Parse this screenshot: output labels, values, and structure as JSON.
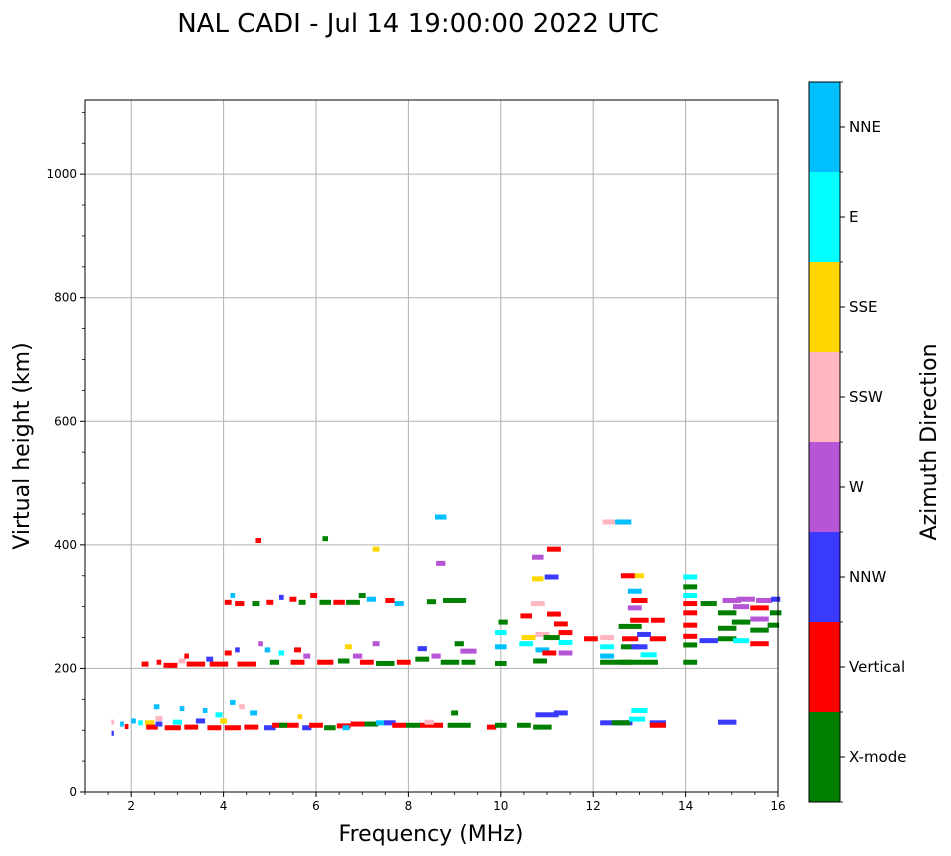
{
  "chart_data": {
    "type": "scatter",
    "title": "NAL CADI - Jul 14 19:00:00 2022 UTC",
    "xlabel": "Frequency (MHz)",
    "ylabel": "Virtual height (km)",
    "xlim": [
      1,
      16
    ],
    "ylim": [
      0,
      1120
    ],
    "xticks": [
      2,
      4,
      6,
      8,
      10,
      12,
      14,
      16
    ],
    "yticks": [
      0,
      200,
      400,
      600,
      800,
      1000
    ],
    "grid": true,
    "colorbar": {
      "title": "Azimuth Direction",
      "categories": [
        {
          "name": "X-mode",
          "color": "#008000"
        },
        {
          "name": "Vertical",
          "color": "#ff0000"
        },
        {
          "name": "NNW",
          "color": "#3a3aff"
        },
        {
          "name": "W",
          "color": "#b655d6"
        },
        {
          "name": "SSW",
          "color": "#ffb6c1"
        },
        {
          "name": "SSE",
          "color": "#ffd700"
        },
        {
          "name": "E",
          "color": "#00ffff"
        },
        {
          "name": "NNE",
          "color": "#00bfff"
        }
      ]
    },
    "points": [
      {
        "f": 1.6,
        "h": 95,
        "w": 0.05,
        "c": "NNW"
      },
      {
        "f": 1.6,
        "h": 113,
        "w": 0.06,
        "c": "SSW"
      },
      {
        "f": 1.8,
        "h": 110,
        "w": 0.08,
        "c": "NNE"
      },
      {
        "f": 1.9,
        "h": 106,
        "w": 0.08,
        "c": "Vertical"
      },
      {
        "f": 2.05,
        "h": 115,
        "w": 0.1,
        "c": "NNE"
      },
      {
        "f": 2.2,
        "h": 112,
        "w": 0.1,
        "c": "E"
      },
      {
        "f": 2.4,
        "h": 112,
        "w": 0.2,
        "c": "SSE"
      },
      {
        "f": 2.45,
        "h": 105,
        "w": 0.25,
        "c": "Vertical"
      },
      {
        "f": 2.55,
        "h": 138,
        "w": 0.12,
        "c": "NNE"
      },
      {
        "f": 2.6,
        "h": 119,
        "w": 0.15,
        "c": "SSW"
      },
      {
        "f": 2.6,
        "h": 110,
        "w": 0.15,
        "c": "NNW"
      },
      {
        "f": 2.9,
        "h": 104,
        "w": 0.35,
        "c": "Vertical"
      },
      {
        "f": 3.0,
        "h": 113,
        "w": 0.2,
        "c": "E"
      },
      {
        "f": 3.1,
        "h": 135,
        "w": 0.1,
        "c": "NNE"
      },
      {
        "f": 3.3,
        "h": 105,
        "w": 0.3,
        "c": "Vertical"
      },
      {
        "f": 3.5,
        "h": 115,
        "w": 0.2,
        "c": "NNW"
      },
      {
        "f": 3.6,
        "h": 132,
        "w": 0.1,
        "c": "NNE"
      },
      {
        "f": 3.8,
        "h": 104,
        "w": 0.3,
        "c": "Vertical"
      },
      {
        "f": 3.9,
        "h": 125,
        "w": 0.15,
        "c": "E"
      },
      {
        "f": 4.0,
        "h": 115,
        "w": 0.15,
        "c": "SSE"
      },
      {
        "f": 4.2,
        "h": 104,
        "w": 0.35,
        "c": "Vertical"
      },
      {
        "f": 4.2,
        "h": 145,
        "w": 0.12,
        "c": "NNE"
      },
      {
        "f": 4.4,
        "h": 138,
        "w": 0.12,
        "c": "SSW"
      },
      {
        "f": 4.6,
        "h": 105,
        "w": 0.3,
        "c": "Vertical"
      },
      {
        "f": 4.65,
        "h": 128,
        "w": 0.15,
        "c": "NNE"
      },
      {
        "f": 5.0,
        "h": 104,
        "w": 0.25,
        "c": "NNW"
      },
      {
        "f": 5.2,
        "h": 108,
        "w": 0.3,
        "c": "Vertical"
      },
      {
        "f": 5.3,
        "h": 108,
        "w": 0.2,
        "c": "X-mode"
      },
      {
        "f": 5.5,
        "h": 108,
        "w": 0.25,
        "c": "Vertical"
      },
      {
        "f": 5.65,
        "h": 122,
        "w": 0.1,
        "c": "SSE"
      },
      {
        "f": 5.8,
        "h": 104,
        "w": 0.2,
        "c": "NNW"
      },
      {
        "f": 6.0,
        "h": 108,
        "w": 0.3,
        "c": "Vertical"
      },
      {
        "f": 6.3,
        "h": 104,
        "w": 0.25,
        "c": "X-mode"
      },
      {
        "f": 6.6,
        "h": 107,
        "w": 0.3,
        "c": "Vertical"
      },
      {
        "f": 6.65,
        "h": 104,
        "w": 0.15,
        "c": "NNE"
      },
      {
        "f": 6.9,
        "h": 110,
        "w": 0.3,
        "c": "Vertical"
      },
      {
        "f": 7.2,
        "h": 110,
        "w": 0.3,
        "c": "X-mode"
      },
      {
        "f": 7.4,
        "h": 112,
        "w": 0.2,
        "c": "NNE"
      },
      {
        "f": 7.6,
        "h": 112,
        "w": 0.25,
        "c": "NNW"
      },
      {
        "f": 7.8,
        "h": 108,
        "w": 0.3,
        "c": "Vertical"
      },
      {
        "f": 8.1,
        "h": 108,
        "w": 0.3,
        "c": "X-mode"
      },
      {
        "f": 8.5,
        "h": 108,
        "w": 0.5,
        "c": "Vertical"
      },
      {
        "f": 8.45,
        "h": 113,
        "w": 0.2,
        "c": "SSW"
      },
      {
        "f": 9.0,
        "h": 128,
        "w": 0.15,
        "c": "X-mode"
      },
      {
        "f": 9.1,
        "h": 108,
        "w": 0.5,
        "c": "X-mode"
      },
      {
        "f": 9.8,
        "h": 105,
        "w": 0.2,
        "c": "Vertical"
      },
      {
        "f": 10.0,
        "h": 108,
        "w": 0.25,
        "c": "X-mode"
      },
      {
        "f": 10.5,
        "h": 108,
        "w": 0.3,
        "c": "X-mode"
      },
      {
        "f": 10.9,
        "h": 105,
        "w": 0.4,
        "c": "X-mode"
      },
      {
        "f": 11.0,
        "h": 125,
        "w": 0.5,
        "c": "NNW"
      },
      {
        "f": 11.3,
        "h": 128,
        "w": 0.3,
        "c": "NNW"
      },
      {
        "f": 12.5,
        "h": 112,
        "w": 0.7,
        "c": "NNW"
      },
      {
        "f": 12.6,
        "h": 112,
        "w": 0.4,
        "c": "X-mode"
      },
      {
        "f": 13.0,
        "h": 132,
        "w": 0.35,
        "c": "E"
      },
      {
        "f": 12.95,
        "h": 118,
        "w": 0.35,
        "c": "E"
      },
      {
        "f": 13.4,
        "h": 112,
        "w": 0.35,
        "c": "NNW"
      },
      {
        "f": 13.4,
        "h": 108,
        "w": 0.35,
        "c": "Vertical"
      },
      {
        "f": 14.9,
        "h": 113,
        "w": 0.4,
        "c": "NNW"
      },
      {
        "f": 2.3,
        "h": 207,
        "w": 0.15,
        "c": "Vertical"
      },
      {
        "f": 2.6,
        "h": 210,
        "w": 0.1,
        "c": "Vertical"
      },
      {
        "f": 2.85,
        "h": 205,
        "w": 0.3,
        "c": "Vertical"
      },
      {
        "f": 3.1,
        "h": 212,
        "w": 0.15,
        "c": "SSW"
      },
      {
        "f": 3.2,
        "h": 220,
        "w": 0.1,
        "c": "Vertical"
      },
      {
        "f": 3.4,
        "h": 207,
        "w": 0.4,
        "c": "Vertical"
      },
      {
        "f": 3.7,
        "h": 215,
        "w": 0.15,
        "c": "NNW"
      },
      {
        "f": 3.9,
        "h": 207,
        "w": 0.4,
        "c": "Vertical"
      },
      {
        "f": 4.1,
        "h": 225,
        "w": 0.15,
        "c": "Vertical"
      },
      {
        "f": 4.3,
        "h": 230,
        "w": 0.1,
        "c": "NNW"
      },
      {
        "f": 4.5,
        "h": 207,
        "w": 0.4,
        "c": "Vertical"
      },
      {
        "f": 4.8,
        "h": 240,
        "w": 0.1,
        "c": "W"
      },
      {
        "f": 4.95,
        "h": 230,
        "w": 0.12,
        "c": "NNE"
      },
      {
        "f": 5.1,
        "h": 210,
        "w": 0.2,
        "c": "X-mode"
      },
      {
        "f": 5.25,
        "h": 225,
        "w": 0.12,
        "c": "E"
      },
      {
        "f": 5.6,
        "h": 210,
        "w": 0.3,
        "c": "Vertical"
      },
      {
        "f": 5.6,
        "h": 230,
        "w": 0.15,
        "c": "Vertical"
      },
      {
        "f": 5.8,
        "h": 220,
        "w": 0.15,
        "c": "W"
      },
      {
        "f": 6.2,
        "h": 210,
        "w": 0.35,
        "c": "Vertical"
      },
      {
        "f": 6.6,
        "h": 212,
        "w": 0.25,
        "c": "X-mode"
      },
      {
        "f": 6.7,
        "h": 235,
        "w": 0.15,
        "c": "SSE"
      },
      {
        "f": 6.9,
        "h": 220,
        "w": 0.2,
        "c": "W"
      },
      {
        "f": 7.1,
        "h": 210,
        "w": 0.3,
        "c": "Vertical"
      },
      {
        "f": 7.3,
        "h": 240,
        "w": 0.15,
        "c": "W"
      },
      {
        "f": 7.5,
        "h": 208,
        "w": 0.4,
        "c": "X-mode"
      },
      {
        "f": 7.9,
        "h": 210,
        "w": 0.3,
        "c": "Vertical"
      },
      {
        "f": 8.3,
        "h": 215,
        "w": 0.3,
        "c": "X-mode"
      },
      {
        "f": 8.3,
        "h": 232,
        "w": 0.2,
        "c": "NNW"
      },
      {
        "f": 8.6,
        "h": 220,
        "w": 0.2,
        "c": "W"
      },
      {
        "f": 8.9,
        "h": 210,
        "w": 0.4,
        "c": "X-mode"
      },
      {
        "f": 9.1,
        "h": 240,
        "w": 0.2,
        "c": "X-mode"
      },
      {
        "f": 9.3,
        "h": 228,
        "w": 0.35,
        "c": "W"
      },
      {
        "f": 9.3,
        "h": 210,
        "w": 0.3,
        "c": "X-mode"
      },
      {
        "f": 10.0,
        "h": 208,
        "w": 0.25,
        "c": "X-mode"
      },
      {
        "f": 10.0,
        "h": 258,
        "w": 0.25,
        "c": "E"
      },
      {
        "f": 10.0,
        "h": 235,
        "w": 0.25,
        "c": "NNE"
      },
      {
        "f": 10.05,
        "h": 275,
        "w": 0.2,
        "c": "X-mode"
      },
      {
        "f": 10.55,
        "h": 240,
        "w": 0.3,
        "c": "E"
      },
      {
        "f": 10.6,
        "h": 250,
        "w": 0.3,
        "c": "SSE"
      },
      {
        "f": 10.55,
        "h": 285,
        "w": 0.25,
        "c": "Vertical"
      },
      {
        "f": 10.9,
        "h": 230,
        "w": 0.3,
        "c": "NNE"
      },
      {
        "f": 10.9,
        "h": 255,
        "w": 0.3,
        "c": "SSW"
      },
      {
        "f": 11.05,
        "h": 225,
        "w": 0.3,
        "c": "Vertical"
      },
      {
        "f": 11.1,
        "h": 250,
        "w": 0.35,
        "c": "X-mode"
      },
      {
        "f": 11.15,
        "h": 288,
        "w": 0.3,
        "c": "Vertical"
      },
      {
        "f": 11.4,
        "h": 225,
        "w": 0.3,
        "c": "W"
      },
      {
        "f": 11.4,
        "h": 242,
        "w": 0.3,
        "c": "E"
      },
      {
        "f": 11.4,
        "h": 258,
        "w": 0.3,
        "c": "Vertical"
      },
      {
        "f": 11.3,
        "h": 272,
        "w": 0.3,
        "c": "Vertical"
      },
      {
        "f": 10.85,
        "h": 212,
        "w": 0.3,
        "c": "X-mode"
      },
      {
        "f": 11.95,
        "h": 248,
        "w": 0.3,
        "c": "Vertical"
      },
      {
        "f": 12.3,
        "h": 220,
        "w": 0.3,
        "c": "NNE"
      },
      {
        "f": 12.3,
        "h": 235,
        "w": 0.3,
        "c": "E"
      },
      {
        "f": 12.3,
        "h": 250,
        "w": 0.3,
        "c": "SSW"
      },
      {
        "f": 12.5,
        "h": 210,
        "w": 0.7,
        "c": "X-mode"
      },
      {
        "f": 12.8,
        "h": 235,
        "w": 0.4,
        "c": "X-mode"
      },
      {
        "f": 12.8,
        "h": 248,
        "w": 0.35,
        "c": "Vertical"
      },
      {
        "f": 12.8,
        "h": 268,
        "w": 0.5,
        "c": "X-mode"
      },
      {
        "f": 12.9,
        "h": 325,
        "w": 0.3,
        "c": "NNE"
      },
      {
        "f": 13.0,
        "h": 235,
        "w": 0.35,
        "c": "NNW"
      },
      {
        "f": 13.0,
        "h": 278,
        "w": 0.4,
        "c": "Vertical"
      },
      {
        "f": 13.0,
        "h": 310,
        "w": 0.35,
        "c": "Vertical"
      },
      {
        "f": 12.9,
        "h": 298,
        "w": 0.3,
        "c": "W"
      },
      {
        "f": 13.0,
        "h": 210,
        "w": 0.8,
        "c": "X-mode"
      },
      {
        "f": 13.2,
        "h": 222,
        "w": 0.35,
        "c": "E"
      },
      {
        "f": 13.4,
        "h": 248,
        "w": 0.35,
        "c": "Vertical"
      },
      {
        "f": 13.4,
        "h": 278,
        "w": 0.3,
        "c": "Vertical"
      },
      {
        "f": 12.95,
        "h": 350,
        "w": 0.3,
        "c": "SSE"
      },
      {
        "f": 12.75,
        "h": 350,
        "w": 0.3,
        "c": "Vertical"
      },
      {
        "f": 13.1,
        "h": 255,
        "w": 0.3,
        "c": "NNW"
      },
      {
        "f": 14.1,
        "h": 210,
        "w": 0.3,
        "c": "X-mode"
      },
      {
        "f": 14.1,
        "h": 238,
        "w": 0.3,
        "c": "X-mode"
      },
      {
        "f": 14.1,
        "h": 252,
        "w": 0.3,
        "c": "Vertical"
      },
      {
        "f": 14.1,
        "h": 270,
        "w": 0.3,
        "c": "Vertical"
      },
      {
        "f": 14.1,
        "h": 290,
        "w": 0.3,
        "c": "Vertical"
      },
      {
        "f": 14.1,
        "h": 305,
        "w": 0.3,
        "c": "Vertical"
      },
      {
        "f": 14.1,
        "h": 318,
        "w": 0.3,
        "c": "E"
      },
      {
        "f": 14.1,
        "h": 332,
        "w": 0.3,
        "c": "X-mode"
      },
      {
        "f": 14.1,
        "h": 348,
        "w": 0.3,
        "c": "E"
      },
      {
        "f": 14.5,
        "h": 245,
        "w": 0.4,
        "c": "NNW"
      },
      {
        "f": 14.5,
        "h": 305,
        "w": 0.35,
        "c": "X-mode"
      },
      {
        "f": 14.9,
        "h": 248,
        "w": 0.4,
        "c": "X-mode"
      },
      {
        "f": 14.9,
        "h": 265,
        "w": 0.4,
        "c": "X-mode"
      },
      {
        "f": 14.9,
        "h": 290,
        "w": 0.4,
        "c": "X-mode"
      },
      {
        "f": 15.0,
        "h": 310,
        "w": 0.4,
        "c": "W"
      },
      {
        "f": 15.2,
        "h": 245,
        "w": 0.35,
        "c": "E"
      },
      {
        "f": 15.2,
        "h": 275,
        "w": 0.4,
        "c": "X-mode"
      },
      {
        "f": 15.2,
        "h": 300,
        "w": 0.35,
        "c": "W"
      },
      {
        "f": 15.3,
        "h": 312,
        "w": 0.4,
        "c": "W"
      },
      {
        "f": 15.6,
        "h": 240,
        "w": 0.4,
        "c": "Vertical"
      },
      {
        "f": 15.6,
        "h": 262,
        "w": 0.4,
        "c": "X-mode"
      },
      {
        "f": 15.6,
        "h": 280,
        "w": 0.4,
        "c": "W"
      },
      {
        "f": 15.6,
        "h": 298,
        "w": 0.4,
        "c": "Vertical"
      },
      {
        "f": 15.7,
        "h": 310,
        "w": 0.35,
        "c": "W"
      },
      {
        "f": 15.9,
        "h": 270,
        "w": 0.25,
        "c": "X-mode"
      },
      {
        "f": 15.95,
        "h": 290,
        "w": 0.25,
        "c": "X-mode"
      },
      {
        "f": 15.95,
        "h": 312,
        "w": 0.2,
        "c": "NNW"
      },
      {
        "f": 4.1,
        "h": 307,
        "w": 0.15,
        "c": "Vertical"
      },
      {
        "f": 4.35,
        "h": 305,
        "w": 0.2,
        "c": "Vertical"
      },
      {
        "f": 4.7,
        "h": 305,
        "w": 0.15,
        "c": "X-mode"
      },
      {
        "f": 5.0,
        "h": 307,
        "w": 0.15,
        "c": "Vertical"
      },
      {
        "f": 5.25,
        "h": 315,
        "w": 0.1,
        "c": "NNW"
      },
      {
        "f": 5.5,
        "h": 312,
        "w": 0.15,
        "c": "Vertical"
      },
      {
        "f": 5.7,
        "h": 307,
        "w": 0.15,
        "c": "X-mode"
      },
      {
        "f": 5.95,
        "h": 318,
        "w": 0.15,
        "c": "Vertical"
      },
      {
        "f": 6.2,
        "h": 307,
        "w": 0.25,
        "c": "X-mode"
      },
      {
        "f": 6.5,
        "h": 307,
        "w": 0.25,
        "c": "Vertical"
      },
      {
        "f": 6.8,
        "h": 307,
        "w": 0.3,
        "c": "X-mode"
      },
      {
        "f": 7.0,
        "h": 318,
        "w": 0.15,
        "c": "X-mode"
      },
      {
        "f": 7.2,
        "h": 312,
        "w": 0.2,
        "c": "NNE"
      },
      {
        "f": 7.6,
        "h": 310,
        "w": 0.2,
        "c": "Vertical"
      },
      {
        "f": 7.8,
        "h": 305,
        "w": 0.2,
        "c": "NNE"
      },
      {
        "f": 8.5,
        "h": 308,
        "w": 0.2,
        "c": "X-mode"
      },
      {
        "f": 9.0,
        "h": 310,
        "w": 0.5,
        "c": "X-mode"
      },
      {
        "f": 4.2,
        "h": 318,
        "w": 0.1,
        "c": "NNE"
      },
      {
        "f": 4.75,
        "h": 407,
        "w": 0.12,
        "c": "Vertical"
      },
      {
        "f": 6.2,
        "h": 410,
        "w": 0.12,
        "c": "X-mode"
      },
      {
        "f": 7.3,
        "h": 393,
        "w": 0.15,
        "c": "SSE"
      },
      {
        "f": 8.7,
        "h": 445,
        "w": 0.25,
        "c": "NNE"
      },
      {
        "f": 8.7,
        "h": 370,
        "w": 0.2,
        "c": "W"
      },
      {
        "f": 10.8,
        "h": 380,
        "w": 0.25,
        "c": "W"
      },
      {
        "f": 11.15,
        "h": 393,
        "w": 0.3,
        "c": "Vertical"
      },
      {
        "f": 10.8,
        "h": 345,
        "w": 0.25,
        "c": "SSE"
      },
      {
        "f": 11.1,
        "h": 348,
        "w": 0.3,
        "c": "NNW"
      },
      {
        "f": 10.8,
        "h": 305,
        "w": 0.3,
        "c": "SSW"
      },
      {
        "f": 12.35,
        "h": 437,
        "w": 0.3,
        "c": "SSW"
      },
      {
        "f": 12.65,
        "h": 437,
        "w": 0.35,
        "c": "NNE"
      }
    ]
  }
}
